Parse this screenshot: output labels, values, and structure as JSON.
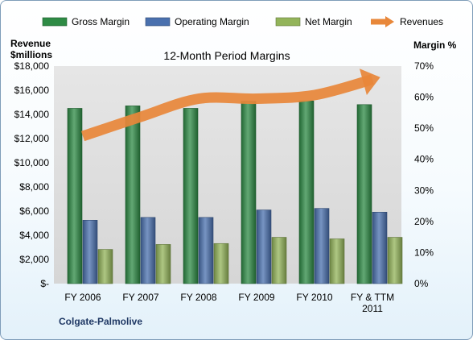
{
  "chart_data": {
    "type": "bar",
    "title": "12-Month Period Margins",
    "company": "Colgate-Palmolive",
    "left_axis_title": [
      "Revenue",
      "$millions"
    ],
    "right_axis_title": "Margin %",
    "left_ticks": [
      "$-",
      "$2,000",
      "$4,000",
      "$6,000",
      "$8,000",
      "$10,000",
      "$12,000",
      "$14,000",
      "$16,000",
      "$18,000"
    ],
    "right_ticks": [
      "0%",
      "10%",
      "20%",
      "30%",
      "40%",
      "50%",
      "60%",
      "70%"
    ],
    "left_ylim": [
      0,
      18000
    ],
    "right_ylim": [
      0,
      70
    ],
    "categories": [
      [
        "FY 2006"
      ],
      [
        "FY 2007"
      ],
      [
        "FY 2008"
      ],
      [
        "FY 2009"
      ],
      [
        "FY 2010"
      ],
      [
        "FY & TTM",
        "2011"
      ]
    ],
    "series": [
      {
        "name": "Gross Margin",
        "axis": "right",
        "color": "#2e8b45",
        "values": [
          56.4,
          57.2,
          56.4,
          58.7,
          58.8,
          57.6
        ]
      },
      {
        "name": "Operating Margin",
        "axis": "right",
        "color": "#4a70ae",
        "values": [
          20.4,
          21.3,
          21.3,
          23.7,
          24.2,
          23.0
        ]
      },
      {
        "name": "Net Margin",
        "axis": "right",
        "color": "#93b45a",
        "values": [
          11.0,
          12.6,
          12.9,
          14.9,
          14.4,
          14.9
        ]
      },
      {
        "name": "Revenues",
        "axis": "left",
        "color": "#e8873a",
        "type": "line",
        "values": [
          12200,
          13800,
          15300,
          15300,
          15600,
          16900
        ]
      }
    ],
    "legend_position": "top",
    "grid": false,
    "plot_area_background": "#d9d9d9"
  }
}
